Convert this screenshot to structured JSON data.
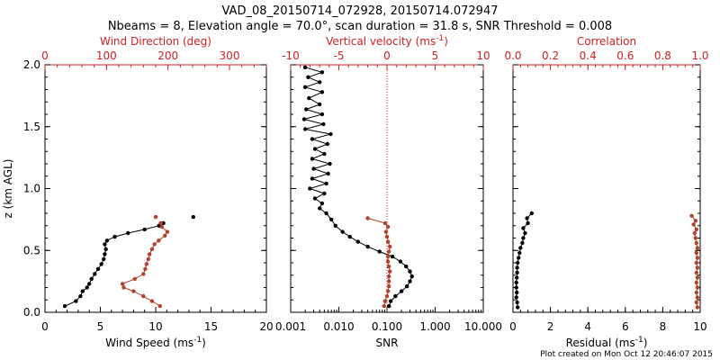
{
  "page": {
    "title_line1": "VAD_08_20150714_072928, 20150714.072947",
    "title_line2": "Nbeams = 8, Elevation angle = 70.0°, scan duration = 31.8 s, SNR Threshold = 0.008",
    "footer": "Plot created on Mon Oct 12 20:46:07 2015"
  },
  "colors": {
    "black": "#000000",
    "red": "#d02020",
    "series2": "#b3402a"
  },
  "chart_data": [
    {
      "type": "scatter",
      "panel": "wind",
      "xlabel": "Wind Speed (ms",
      "xlabel_sup": "-1",
      "xlabel_end": ")",
      "ylabel": "z (km AGL)",
      "top_label": "Wind Direction (deg)",
      "xlim": [
        0,
        20
      ],
      "top_xlim": [
        0,
        360
      ],
      "ylim": [
        0,
        2.0
      ],
      "xticks": [
        0,
        5,
        10,
        15,
        20
      ],
      "xtick_labels": [
        "0",
        "5",
        "10",
        "15",
        "20"
      ],
      "top_ticks": [
        0,
        100,
        200,
        300
      ],
      "top_tick_labels": [
        "0",
        "100",
        "200",
        "300"
      ],
      "yticks": [
        0,
        0.5,
        1.0,
        1.5,
        2.0
      ],
      "ytick_labels": [
        "0.0",
        "0.5",
        "1.0",
        "1.5",
        "2.0"
      ],
      "series": [
        {
          "axis": "bottom",
          "color": "#000000",
          "points": [
            [
              1.8,
              0.05
            ],
            [
              2.8,
              0.09
            ],
            [
              3.2,
              0.13
            ],
            [
              3.4,
              0.17
            ],
            [
              3.8,
              0.2
            ],
            [
              4.0,
              0.23
            ],
            [
              4.2,
              0.27
            ],
            [
              4.5,
              0.31
            ],
            [
              4.8,
              0.35
            ],
            [
              5.1,
              0.39
            ],
            [
              5.3,
              0.43
            ],
            [
              5.4,
              0.47
            ],
            [
              5.5,
              0.51
            ],
            [
              5.4,
              0.55
            ],
            [
              5.6,
              0.58
            ],
            [
              6.3,
              0.61
            ],
            [
              7.5,
              0.64
            ],
            [
              9.0,
              0.67
            ],
            [
              10.3,
              0.7
            ],
            [
              10.7,
              0.72
            ],
            [
              13.4,
              0.77
            ]
          ]
        },
        {
          "axis": "top",
          "color": "#b3402a",
          "points": [
            [
              187,
              0.05
            ],
            [
              174,
              0.09
            ],
            [
              160,
              0.13
            ],
            [
              144,
              0.17
            ],
            [
              128,
              0.2
            ],
            [
              126,
              0.23
            ],
            [
              146,
              0.27
            ],
            [
              160,
              0.31
            ],
            [
              163,
              0.35
            ],
            [
              165,
              0.39
            ],
            [
              168,
              0.43
            ],
            [
              170,
              0.47
            ],
            [
              174,
              0.51
            ],
            [
              178,
              0.55
            ],
            [
              185,
              0.58
            ],
            [
              195,
              0.62
            ],
            [
              199,
              0.65
            ],
            [
              190,
              0.69
            ],
            [
              188,
              0.72
            ],
            [
              180,
              0.77
            ]
          ]
        }
      ]
    },
    {
      "type": "line",
      "panel": "vertical-velocity",
      "xlabel": "SNR",
      "top_label": "Vertical velocity (ms",
      "top_label_sup": "-1",
      "top_label_end": ")",
      "xscale": "log",
      "xlim": [
        0.001,
        10
      ],
      "top_xlim": [
        -10,
        10
      ],
      "ylim": [
        0,
        2.0
      ],
      "xticks": [
        0.001,
        0.01,
        0.1,
        1,
        10
      ],
      "xtick_labels": [
        "0.001",
        "0.010",
        "0.100",
        "1.000",
        "10.000"
      ],
      "top_ticks": [
        -10,
        -5,
        0,
        5,
        10
      ],
      "top_tick_labels": [
        "-10",
        "-5",
        "0",
        "5",
        "10"
      ],
      "yticks": [
        0,
        0.5,
        1.0,
        1.5,
        2.0
      ],
      "series": [
        {
          "axis": "bottom",
          "color": "#000000",
          "points": [
            [
              0.11,
              0.05
            ],
            [
              0.12,
              0.09
            ],
            [
              0.15,
              0.13
            ],
            [
              0.2,
              0.17
            ],
            [
              0.26,
              0.21
            ],
            [
              0.3,
              0.25
            ],
            [
              0.33,
              0.29
            ],
            [
              0.3,
              0.33
            ],
            [
              0.25,
              0.37
            ],
            [
              0.19,
              0.41
            ],
            [
              0.13,
              0.45
            ],
            [
              0.07,
              0.49
            ],
            [
              0.04,
              0.53
            ],
            [
              0.025,
              0.57
            ],
            [
              0.017,
              0.61
            ],
            [
              0.012,
              0.65
            ],
            [
              0.0085,
              0.7
            ],
            [
              0.007,
              0.75
            ],
            [
              0.0055,
              0.8
            ],
            [
              0.004,
              0.84
            ],
            [
              0.0045,
              0.88
            ],
            [
              0.0032,
              0.92
            ],
            [
              0.005,
              0.96
            ],
            [
              0.0025,
              1.0
            ],
            [
              0.0055,
              1.04
            ],
            [
              0.0028,
              1.08
            ],
            [
              0.006,
              1.12
            ],
            [
              0.003,
              1.16
            ],
            [
              0.0065,
              1.2
            ],
            [
              0.0028,
              1.24
            ],
            [
              0.005,
              1.28
            ],
            [
              0.0032,
              1.32
            ],
            [
              0.0058,
              1.36
            ],
            [
              0.0028,
              1.4
            ],
            [
              0.0068,
              1.44
            ],
            [
              0.002,
              1.48
            ],
            [
              0.0048,
              1.52
            ],
            [
              0.0019,
              1.56
            ],
            [
              0.0045,
              1.6
            ],
            [
              0.0021,
              1.64
            ],
            [
              0.004,
              1.68
            ],
            [
              0.0024,
              1.73
            ],
            [
              0.0045,
              1.78
            ],
            [
              0.002,
              1.82
            ],
            [
              0.004,
              1.86
            ],
            [
              0.0023,
              1.9
            ],
            [
              0.0045,
              1.94
            ],
            [
              0.002,
              1.98
            ]
          ]
        },
        {
          "axis": "top",
          "color": "#b3402a",
          "points": [
            [
              -0.3,
              0.05
            ],
            [
              -0.2,
              0.09
            ],
            [
              0.0,
              0.13
            ],
            [
              0.1,
              0.17
            ],
            [
              0.2,
              0.21
            ],
            [
              0.2,
              0.25
            ],
            [
              0.2,
              0.29
            ],
            [
              0.3,
              0.33
            ],
            [
              0.2,
              0.37
            ],
            [
              0.1,
              0.41
            ],
            [
              0.1,
              0.45
            ],
            [
              0.2,
              0.49
            ],
            [
              0.3,
              0.53
            ],
            [
              0.1,
              0.57
            ],
            [
              0.0,
              0.61
            ],
            [
              -0.1,
              0.65
            ],
            [
              0.1,
              0.69
            ],
            [
              -0.2,
              0.72
            ],
            [
              -2.0,
              0.76
            ]
          ]
        }
      ]
    },
    {
      "type": "scatter",
      "panel": "residual",
      "xlabel": "Residual (ms",
      "xlabel_sup": "-1",
      "xlabel_end": ")",
      "top_label": "Correlation",
      "xlim": [
        0,
        10
      ],
      "top_xlim": [
        0.0,
        1.0
      ],
      "ylim": [
        0,
        2.0
      ],
      "xticks": [
        0,
        2,
        4,
        6,
        8,
        10
      ],
      "xtick_labels": [
        "0",
        "2",
        "4",
        "6",
        "8",
        "10"
      ],
      "top_ticks": [
        0.0,
        0.2,
        0.4,
        0.6,
        0.8,
        1.0
      ],
      "top_tick_labels": [
        "0.0",
        "0.2",
        "0.4",
        "0.6",
        "0.8",
        "1.0"
      ],
      "yticks": [
        0,
        0.5,
        1.0,
        1.5,
        2.0
      ],
      "series": [
        {
          "axis": "bottom",
          "color": "#000000",
          "points": [
            [
              0.25,
              0.04
            ],
            [
              0.22,
              0.08
            ],
            [
              0.18,
              0.12
            ],
            [
              0.2,
              0.16
            ],
            [
              0.18,
              0.2
            ],
            [
              0.18,
              0.24
            ],
            [
              0.2,
              0.28
            ],
            [
              0.22,
              0.32
            ],
            [
              0.22,
              0.36
            ],
            [
              0.25,
              0.4
            ],
            [
              0.3,
              0.44
            ],
            [
              0.35,
              0.48
            ],
            [
              0.4,
              0.52
            ],
            [
              0.5,
              0.56
            ],
            [
              0.55,
              0.6
            ],
            [
              0.65,
              0.64
            ],
            [
              0.55,
              0.68
            ],
            [
              0.8,
              0.72
            ],
            [
              0.75,
              0.76
            ],
            [
              1.0,
              0.8
            ]
          ]
        },
        {
          "axis": "top",
          "color": "#b3402a",
          "points": [
            [
              0.985,
              0.04
            ],
            [
              0.98,
              0.08
            ],
            [
              0.985,
              0.12
            ],
            [
              0.98,
              0.16
            ],
            [
              0.985,
              0.2
            ],
            [
              0.98,
              0.24
            ],
            [
              0.985,
              0.28
            ],
            [
              0.98,
              0.32
            ],
            [
              0.985,
              0.36
            ],
            [
              0.98,
              0.4
            ],
            [
              0.985,
              0.44
            ],
            [
              0.98,
              0.48
            ],
            [
              0.985,
              0.52
            ],
            [
              0.98,
              0.56
            ],
            [
              0.975,
              0.6
            ],
            [
              0.97,
              0.64
            ],
            [
              0.98,
              0.67
            ],
            [
              0.965,
              0.71
            ],
            [
              0.975,
              0.74
            ],
            [
              0.955,
              0.78
            ]
          ]
        }
      ]
    }
  ]
}
